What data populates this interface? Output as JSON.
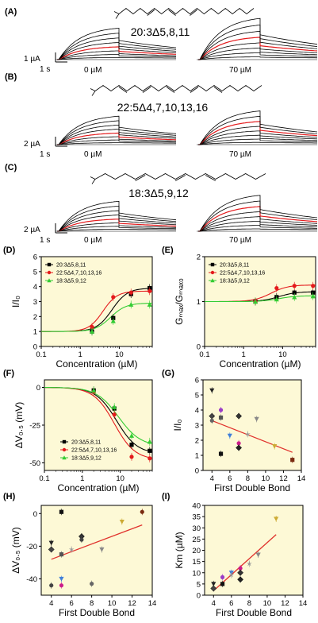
{
  "panels": {
    "A": {
      "label": "(A)",
      "lipid": "20:3Δ5,8,11",
      "scale_current": "1 µA",
      "scale_time": "1 s",
      "left_conc": "0 µM",
      "right_conc": "70 µM"
    },
    "B": {
      "label": "(B)",
      "lipid": "22:5Δ4,7,10,13,16",
      "scale_current": "2 µA",
      "scale_time": "1 s",
      "left_conc": "0 µM",
      "right_conc": "70 µM"
    },
    "C": {
      "label": "(C)",
      "lipid": "18:3Δ5,9,12",
      "scale_current": "2 µA",
      "scale_time": "1 s",
      "left_conc": "0 µM",
      "right_conc": "70 µM"
    },
    "D": {
      "label": "(D)"
    },
    "E": {
      "label": "(E)"
    },
    "F": {
      "label": "(F)"
    },
    "G": {
      "label": "(G)"
    },
    "H": {
      "label": "(H)"
    },
    "I": {
      "label": "(I)"
    }
  },
  "colors": {
    "series1": "#000000",
    "series2": "#e41a1c",
    "series3": "#33cc33",
    "plot_bg": "#fdf9d6",
    "fit_line": "#e0312c"
  },
  "chart_data": [
    {
      "id": "D",
      "type": "line",
      "xscale": "log",
      "xlabel": "Concentration (µM)",
      "ylabel": "I/I₀",
      "xlim": [
        0.1,
        70
      ],
      "ylim": [
        0,
        6
      ],
      "xticks": [
        0.1,
        1,
        10
      ],
      "xtick_labels": [
        "0.1",
        "1",
        "10"
      ],
      "yticks": [
        0,
        1,
        2,
        3,
        4,
        5,
        6
      ],
      "ytick_labels": [
        "0",
        "1",
        "2",
        "3",
        "4",
        "5",
        "6"
      ],
      "legend": "top-left",
      "series": [
        {
          "name": "20:3Δ5,8,11",
          "x": [
            2,
            7,
            20,
            60
          ],
          "y": [
            1.0,
            1.9,
            3.5,
            3.9
          ],
          "fit": {
            "base": 1.0,
            "top": 3.9,
            "ec50": 6.5,
            "n": 2.2
          }
        },
        {
          "name": "22:5Δ4,7,10,13,16",
          "x": [
            2,
            7,
            20,
            60
          ],
          "y": [
            1.3,
            3.3,
            3.6,
            3.7
          ],
          "fit": {
            "base": 1.0,
            "top": 3.7,
            "ec50": 3.8,
            "n": 2.4
          }
        },
        {
          "name": "18:3Δ5,9,12",
          "x": [
            2,
            7,
            20,
            60
          ],
          "y": [
            1.0,
            1.7,
            2.8,
            2.8
          ],
          "fit": {
            "base": 1.0,
            "top": 2.9,
            "ec50": 6.0,
            "n": 2.2
          }
        }
      ]
    },
    {
      "id": "E",
      "type": "line",
      "xscale": "log",
      "xlabel": "Concentration (µM)",
      "ylabel": "Gₘₐₓ/Gₘₐₓ₀",
      "xlim": [
        0.1,
        70
      ],
      "ylim": [
        0,
        2
      ],
      "xticks": [
        0.1,
        1,
        10
      ],
      "xtick_labels": [
        "0.1",
        "1",
        "10"
      ],
      "yticks": [
        0,
        1,
        2
      ],
      "ytick_labels": [
        "0",
        "1",
        "2"
      ],
      "legend": "top-left",
      "series": [
        {
          "name": "20:3Δ5,8,11",
          "x": [
            2,
            7,
            20,
            60
          ],
          "y": [
            1.0,
            1.1,
            1.2,
            1.2
          ],
          "fit": {
            "base": 1.0,
            "top": 1.22,
            "ec50": 8,
            "n": 2
          }
        },
        {
          "name": "22:5Δ4,7,10,13,16",
          "x": [
            2,
            7,
            20,
            60
          ],
          "y": [
            1.0,
            1.3,
            1.35,
            1.35
          ],
          "fit": {
            "base": 1.0,
            "top": 1.37,
            "ec50": 5,
            "n": 2
          }
        },
        {
          "name": "18:3Δ5,9,12",
          "x": [
            2,
            7,
            20,
            60
          ],
          "y": [
            1.0,
            1.05,
            1.1,
            1.12
          ],
          "fit": {
            "base": 1.0,
            "top": 1.13,
            "ec50": 8,
            "n": 2
          }
        }
      ]
    },
    {
      "id": "F",
      "type": "line",
      "xscale": "log",
      "xlabel": "Concentration (µM)",
      "ylabel": "ΔV₀.₅ (mV)",
      "xlim": [
        0.1,
        70
      ],
      "ylim": [
        -55,
        5
      ],
      "xticks": [
        0.1,
        1,
        10
      ],
      "xtick_labels": [
        "0.1",
        "1",
        "10"
      ],
      "yticks": [
        0,
        -25,
        -50
      ],
      "ytick_labels": [
        "0",
        "-25",
        "-50"
      ],
      "legend": "bottom-center",
      "series": [
        {
          "name": "20:3Δ5,8,11",
          "x": [
            2,
            7,
            20,
            60
          ],
          "y": [
            -2,
            -14,
            -38,
            -42
          ],
          "fit": {
            "base": 0,
            "top": -44,
            "ec50": 8,
            "n": 1.6
          }
        },
        {
          "name": "22:5Δ4,7,10,13,16",
          "x": [
            2,
            7,
            20,
            60
          ],
          "y": [
            -3,
            -18,
            -46,
            -47
          ],
          "fit": {
            "base": 0,
            "top": -48,
            "ec50": 7,
            "n": 1.6
          }
        },
        {
          "name": "18:3Δ5,9,12",
          "x": [
            2,
            7,
            20,
            60
          ],
          "y": [
            -2,
            -13,
            -32,
            -36
          ],
          "fit": {
            "base": 0,
            "top": -39,
            "ec50": 9,
            "n": 1.5
          }
        }
      ]
    },
    {
      "id": "G",
      "type": "scatter",
      "xlabel": "First Double Bond",
      "ylabel": "I/I₀",
      "xlim": [
        3,
        14
      ],
      "ylim": [
        0,
        6
      ],
      "xticks": [
        4,
        6,
        8,
        10,
        12,
        14
      ],
      "xtick_labels": [
        "4",
        "6",
        "8",
        "10",
        "12",
        "14"
      ],
      "yticks": [
        0,
        1,
        2,
        3,
        4,
        5,
        6
      ],
      "ytick_labels": [
        "0",
        "1",
        "2",
        "3",
        "4",
        "5",
        "6"
      ],
      "fit": {
        "x": [
          4,
          13
        ],
        "y": [
          3.3,
          1.2
        ]
      },
      "points": [
        {
          "x": 4,
          "y": 5.3,
          "m": "tri-down",
          "c": "#222222"
        },
        {
          "x": 4,
          "y": 3.6,
          "m": "diamond",
          "c": "#444444"
        },
        {
          "x": 4,
          "y": 3.3,
          "m": "circle",
          "c": "#666666"
        },
        {
          "x": 5,
          "y": 4.0,
          "m": "circle",
          "c": "#9a3cc7"
        },
        {
          "x": 5,
          "y": 3.5,
          "m": "square",
          "c": "#555555"
        },
        {
          "x": 5,
          "y": 1.1,
          "m": "square",
          "c": "#111111"
        },
        {
          "x": 6,
          "y": 2.3,
          "m": "tri-down",
          "c": "#3f7fd9"
        },
        {
          "x": 7,
          "y": 3.6,
          "m": "diamond",
          "c": "#333333"
        },
        {
          "x": 7,
          "y": 1.8,
          "m": "circle",
          "c": "#cc1c8a"
        },
        {
          "x": 7,
          "y": 1.5,
          "m": "diamond",
          "c": "#222222"
        },
        {
          "x": 8,
          "y": 2.4,
          "m": "star",
          "c": "#999999"
        },
        {
          "x": 9,
          "y": 3.4,
          "m": "tri-down",
          "c": "#888888"
        },
        {
          "x": 11,
          "y": 1.6,
          "m": "tri-down",
          "c": "#ccaa33"
        },
        {
          "x": 13,
          "y": 0.7,
          "m": "square",
          "c": "#7a2a10"
        }
      ]
    },
    {
      "id": "H",
      "type": "scatter",
      "xlabel": "First Double Bond",
      "ylabel": "ΔV₀.₅ (mV)",
      "xlim": [
        3,
        14
      ],
      "ylim": [
        -50,
        5
      ],
      "xticks": [
        4,
        6,
        8,
        10,
        12,
        14
      ],
      "xtick_labels": [
        "4",
        "6",
        "8",
        "10",
        "12",
        "14"
      ],
      "yticks": [
        0,
        -20,
        -40
      ],
      "ytick_labels": [
        "0",
        "-20",
        "-40"
      ],
      "fit": {
        "x": [
          4,
          13
        ],
        "y": [
          -28,
          -7
        ]
      },
      "points": [
        {
          "x": 4,
          "y": -18,
          "m": "tri-down",
          "c": "#222222"
        },
        {
          "x": 4,
          "y": -22,
          "m": "diamond",
          "c": "#444444"
        },
        {
          "x": 4,
          "y": -44,
          "m": "circle",
          "c": "#444444"
        },
        {
          "x": 5,
          "y": 1,
          "m": "square",
          "c": "#111111"
        },
        {
          "x": 5,
          "y": -25,
          "m": "square",
          "c": "#555555"
        },
        {
          "x": 5,
          "y": -40,
          "m": "tri-down",
          "c": "#3f7fd9"
        },
        {
          "x": 5,
          "y": -44,
          "m": "circle",
          "c": "#cc1c8a"
        },
        {
          "x": 6,
          "y": -22,
          "m": "star",
          "c": "#999999"
        },
        {
          "x": 7,
          "y": -14,
          "m": "diamond",
          "c": "#333333"
        },
        {
          "x": 7,
          "y": -16,
          "m": "circle",
          "c": "#444444"
        },
        {
          "x": 8,
          "y": -43,
          "m": "circle",
          "c": "#666666"
        },
        {
          "x": 9,
          "y": -22,
          "m": "tri-down",
          "c": "#888888"
        },
        {
          "x": 11,
          "y": -5,
          "m": "tri-down",
          "c": "#ccaa33"
        },
        {
          "x": 13,
          "y": 1,
          "m": "circle",
          "c": "#7a2a10"
        }
      ]
    },
    {
      "id": "I",
      "type": "scatter",
      "xlabel": "First Double Bond",
      "ylabel": "Km (µM)",
      "xlim": [
        3,
        14
      ],
      "ylim": [
        0,
        40
      ],
      "xticks": [
        4,
        6,
        8,
        10,
        12,
        14
      ],
      "xtick_labels": [
        "4",
        "6",
        "8",
        "10",
        "12",
        "14"
      ],
      "yticks": [
        0,
        5,
        10,
        15,
        20,
        25,
        30,
        35,
        40
      ],
      "ytick_labels": [
        "0",
        "5",
        "10",
        "15",
        "20",
        "25",
        "30",
        "35",
        "40"
      ],
      "fit": {
        "x": [
          4,
          11
        ],
        "y": [
          2,
          27
        ]
      },
      "points": [
        {
          "x": 4,
          "y": 5,
          "m": "tri-down",
          "c": "#222222"
        },
        {
          "x": 4,
          "y": 3,
          "m": "diamond",
          "c": "#444444"
        },
        {
          "x": 5,
          "y": 8,
          "m": "circle",
          "c": "#9a3cc7"
        },
        {
          "x": 5,
          "y": 5,
          "m": "square",
          "c": "#111111"
        },
        {
          "x": 6,
          "y": 10,
          "m": "tri-down",
          "c": "#3f7fd9"
        },
        {
          "x": 6,
          "y": 9,
          "m": "star",
          "c": "#999999"
        },
        {
          "x": 7,
          "y": 12,
          "m": "circle",
          "c": "#cc1c8a"
        },
        {
          "x": 7,
          "y": 10,
          "m": "diamond",
          "c": "#333333"
        },
        {
          "x": 7,
          "y": 7,
          "m": "diamond",
          "c": "#222222"
        },
        {
          "x": 8,
          "y": 14,
          "m": "star",
          "c": "#999999"
        },
        {
          "x": 9,
          "y": 18,
          "m": "tri-down",
          "c": "#888888"
        },
        {
          "x": 11,
          "y": 34,
          "m": "tri-down",
          "c": "#ccaa33"
        }
      ]
    }
  ]
}
